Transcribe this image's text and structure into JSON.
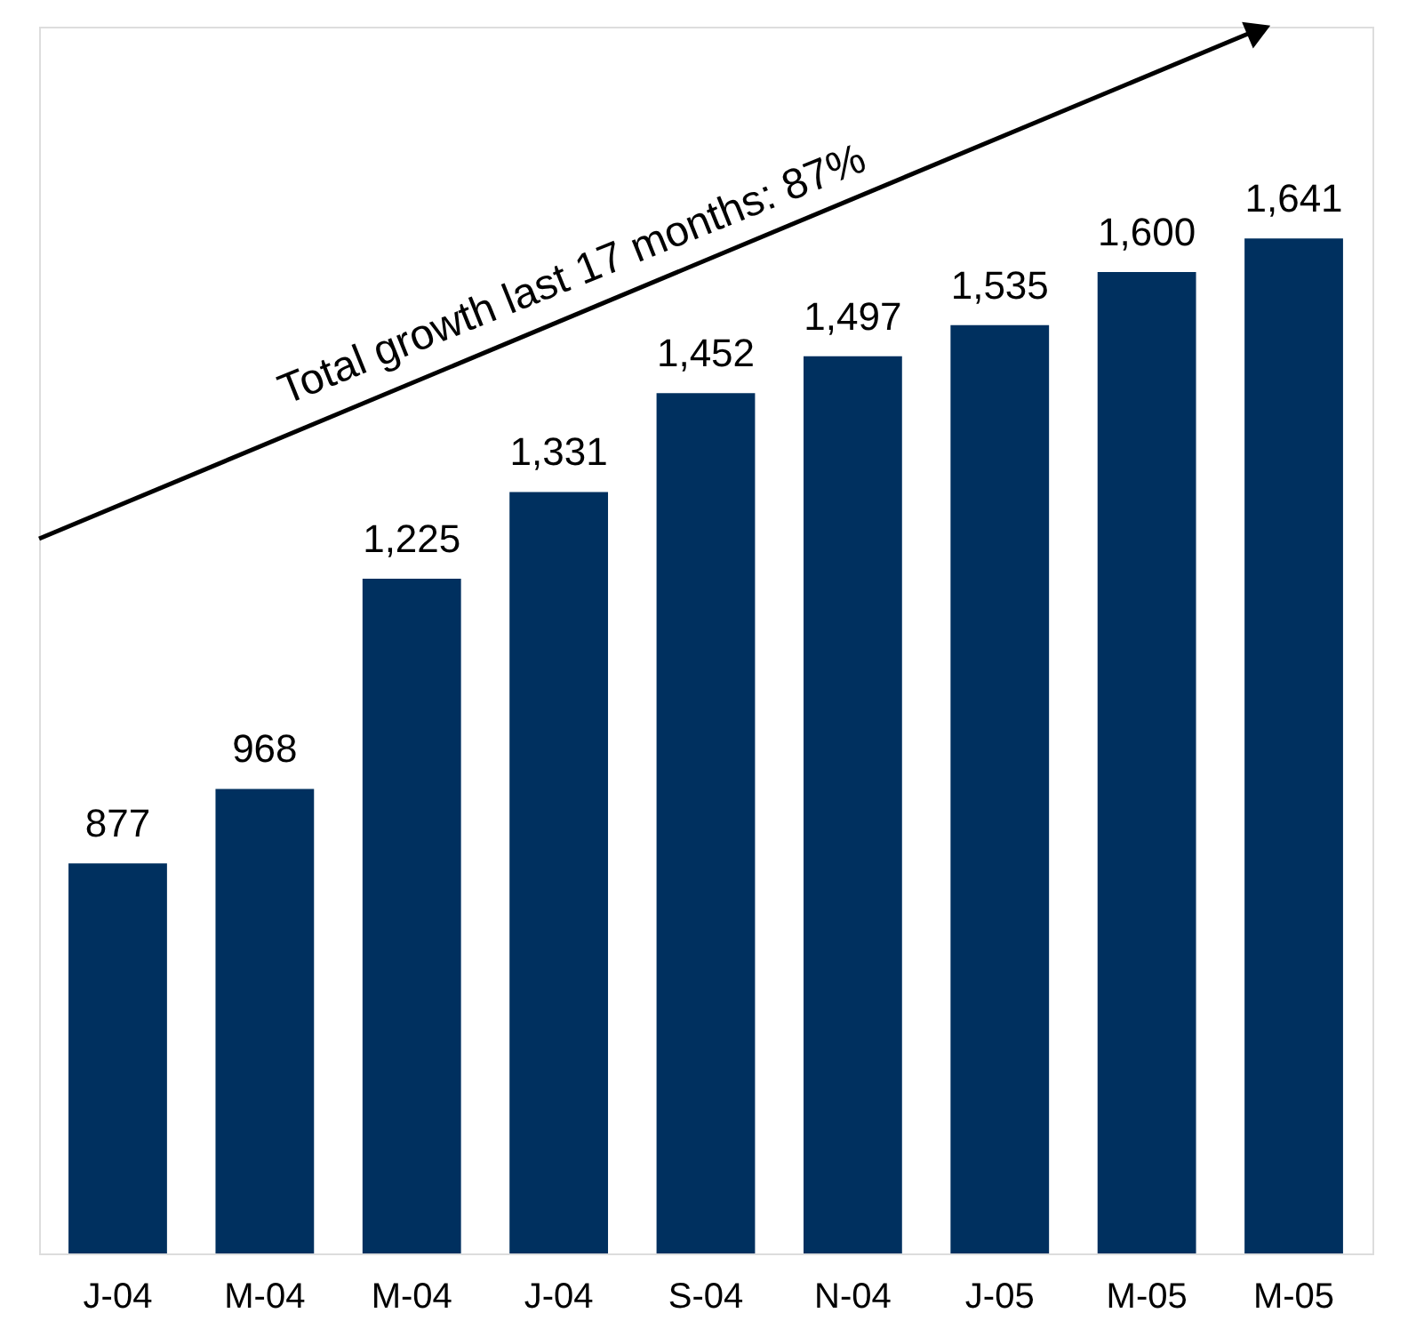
{
  "chart_data": {
    "type": "bar",
    "categories": [
      "J-04",
      "M-04",
      "M-04",
      "J-04",
      "S-04",
      "N-04",
      "J-05",
      "M-05",
      "M-05"
    ],
    "values": [
      877,
      968,
      1225,
      1331,
      1452,
      1497,
      1535,
      1600,
      1641
    ],
    "color": "#00305f",
    "ylim": [
      400,
      1900
    ],
    "tick_labels": "x",
    "value_labels": [
      "877",
      "968",
      "1,225",
      "1,331",
      "1,452",
      "1,497",
      "1,535",
      "1,600",
      "1,641"
    ],
    "annotations": [
      "Total growth last 17 months: 87%"
    ]
  }
}
